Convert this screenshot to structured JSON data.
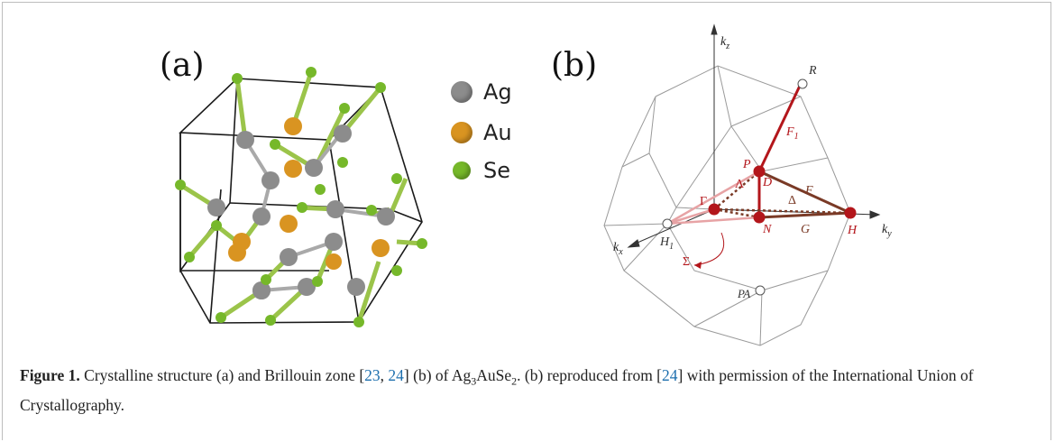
{
  "panels": {
    "a": {
      "label": "(a)"
    },
    "b": {
      "label": "(b)"
    }
  },
  "legend": [
    {
      "label": "Ag",
      "color": "#8c8c8c"
    },
    {
      "label": "Au",
      "color": "#d99421"
    },
    {
      "label": "Se",
      "color": "#76b82a"
    }
  ],
  "brillouin_zone": {
    "axes": {
      "kz": "k",
      "kz_sub": "z",
      "ky": "k",
      "ky_sub": "y",
      "kx": "k",
      "kx_sub": "x"
    },
    "points": {
      "R": "R",
      "P": "P",
      "Gamma": "Γ",
      "N": "N",
      "H": "H",
      "H1": "H",
      "H1_sub": "1",
      "PA": "PA"
    },
    "lines": {
      "F1": "F",
      "F1_sub": "1",
      "F": "F",
      "D": "D",
      "Lambda": "Λ",
      "Delta": "Δ",
      "G": "G",
      "Sigma": "Σ"
    },
    "colors": {
      "dark_red": "#b3161b",
      "brown": "#7a3a26",
      "pink": "#e7a3a5",
      "grey": "#9a9a9a"
    }
  },
  "caption": {
    "figure_label": "Figure 1.",
    "text_1": " Crystalline structure (a) and Brillouin zone [",
    "ref_1": "23",
    "sep": ", ",
    "ref_2": "24",
    "text_2": "] (b) of Ag",
    "sub_3": "3",
    "text_3": "AuSe",
    "sub_2": "2",
    "text_4": ". (b) reproduced from [",
    "ref_3": "24",
    "text_5": "] with permission of the International Union of Crystallography."
  }
}
